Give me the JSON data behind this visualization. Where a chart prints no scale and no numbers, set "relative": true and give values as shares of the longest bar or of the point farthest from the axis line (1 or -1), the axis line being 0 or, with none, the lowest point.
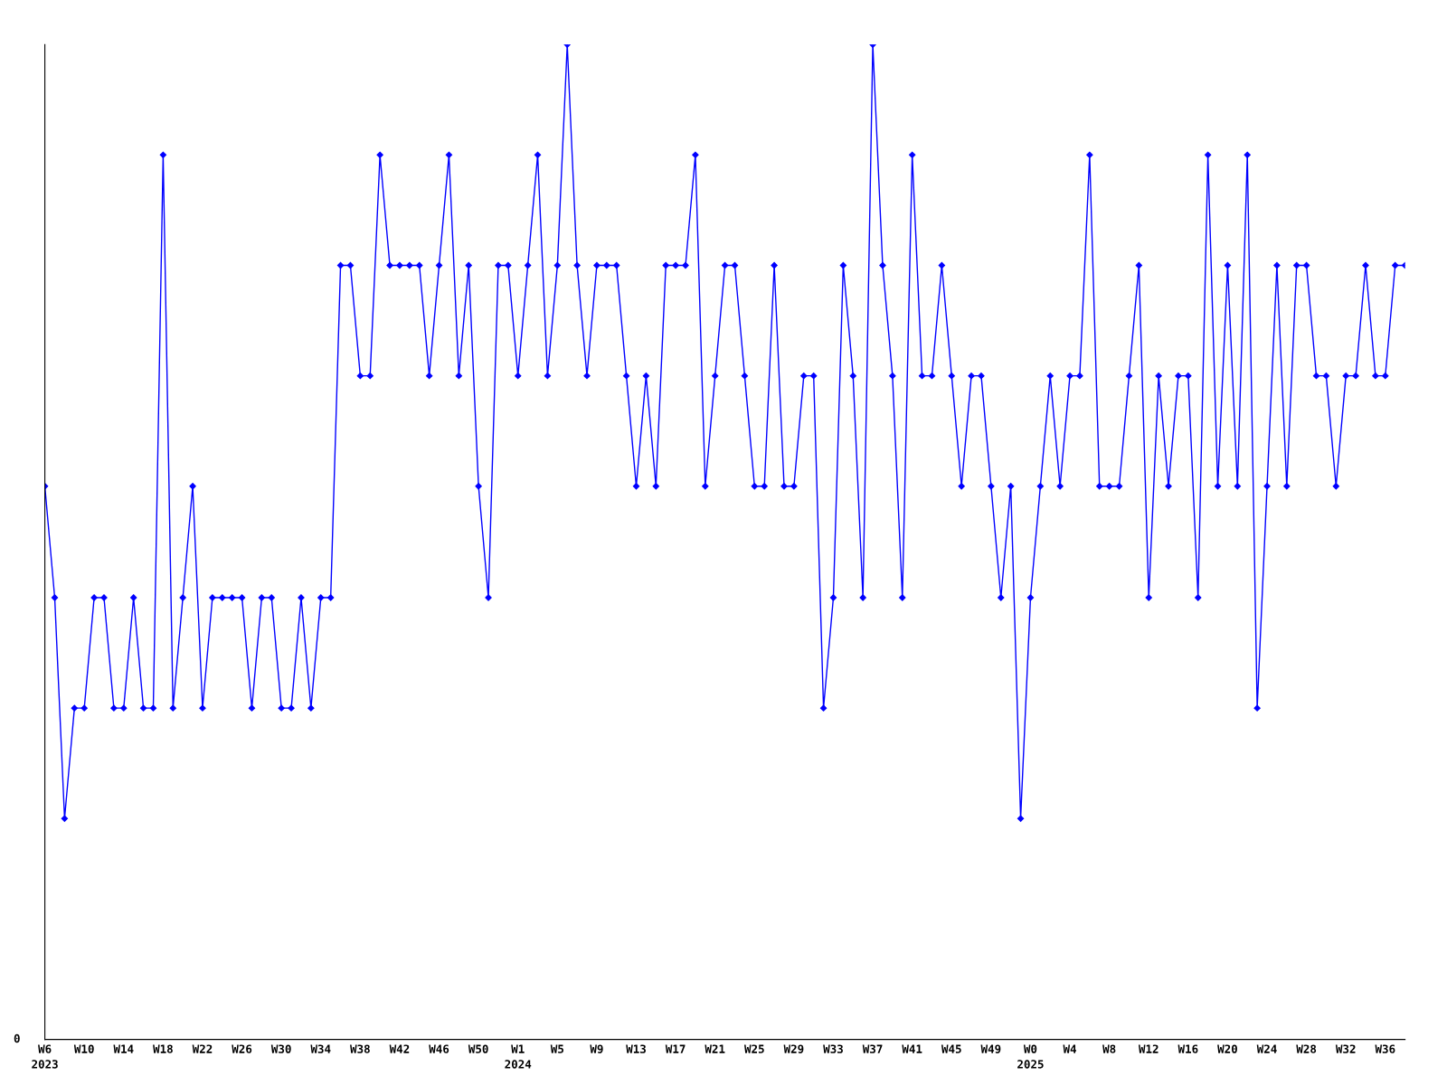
{
  "chart_data": {
    "type": "line",
    "relative": true,
    "grid": false,
    "marker": "diamond",
    "line_style": "solid",
    "annotations": [
      "0"
    ],
    "categories": [
      "W6\n2023",
      null,
      null,
      null,
      "W10",
      null,
      null,
      null,
      "W14",
      null,
      null,
      null,
      "W18",
      null,
      null,
      null,
      "W22",
      null,
      null,
      null,
      "W26",
      null,
      null,
      null,
      "W30",
      null,
      null,
      null,
      "W34",
      null,
      null,
      null,
      "W38",
      null,
      null,
      null,
      "W42",
      null,
      null,
      null,
      "W46",
      null,
      null,
      null,
      "W50",
      null,
      null,
      null,
      "W1\n2024",
      null,
      null,
      null,
      "W5",
      null,
      null,
      null,
      "W9",
      null,
      null,
      null,
      "W13",
      null,
      null,
      null,
      "W17",
      null,
      null,
      null,
      "W21",
      null,
      null,
      null,
      "W25",
      null,
      null,
      null,
      "W29",
      null,
      null,
      null,
      "W33",
      null,
      null,
      null,
      "W37",
      null,
      null,
      null,
      "W41",
      null,
      null,
      null,
      "W45",
      null,
      null,
      null,
      "W49",
      null,
      null,
      null,
      "W0\n2025",
      null,
      null,
      null,
      "W4",
      null,
      null,
      null,
      "W8",
      null,
      null,
      null,
      "W12",
      null,
      null,
      null,
      "W16",
      null,
      null,
      null,
      "W20",
      null,
      null,
      null,
      "W24",
      null,
      null,
      null,
      "W28",
      null,
      null,
      null,
      "W32",
      null,
      null,
      null,
      "W36",
      null,
      null
    ],
    "series": [
      {
        "color": "#0000ff",
        "values": [
          0.556,
          0.444,
          0.222,
          0.333,
          0.333,
          0.444,
          0.444,
          0.333,
          0.333,
          0.444,
          0.333,
          0.333,
          0.889,
          0.333,
          0.444,
          0.556,
          0.333,
          0.444,
          0.444,
          0.444,
          0.444,
          0.333,
          0.444,
          0.444,
          0.333,
          0.333,
          0.444,
          0.333,
          0.444,
          0.444,
          0.778,
          0.778,
          0.667,
          0.667,
          0.889,
          0.778,
          0.778,
          0.778,
          0.778,
          0.667,
          0.778,
          0.889,
          0.667,
          0.778,
          0.556,
          0.444,
          0.778,
          0.778,
          0.667,
          0.778,
          0.889,
          0.667,
          0.778,
          1,
          0.778,
          0.667,
          0.778,
          0.778,
          0.778,
          0.667,
          0.556,
          0.667,
          0.556,
          0.778,
          0.778,
          0.778,
          0.889,
          0.556,
          0.667,
          0.778,
          0.778,
          0.667,
          0.556,
          0.556,
          0.778,
          0.556,
          0.556,
          0.667,
          0.667,
          0.333,
          0.444,
          0.778,
          0.667,
          0.444,
          1,
          0.778,
          0.667,
          0.444,
          0.889,
          0.667,
          0.667,
          0.778,
          0.667,
          0.556,
          0.667,
          0.667,
          0.556,
          0.444,
          0.556,
          0.222,
          0.444,
          0.556,
          0.667,
          0.556,
          0.667,
          0.667,
          0.889,
          0.556,
          0.556,
          0.556,
          0.667,
          0.778,
          0.444,
          0.667,
          0.556,
          0.667,
          0.667,
          0.444,
          0.889,
          0.556,
          0.778,
          0.556,
          0.889,
          0.333,
          0.556,
          0.778,
          0.556,
          0.778,
          0.778,
          0.667,
          0.667,
          0.556,
          0.667,
          0.667,
          0.778,
          0.667,
          0.667,
          0.778,
          0.778
        ]
      }
    ]
  }
}
